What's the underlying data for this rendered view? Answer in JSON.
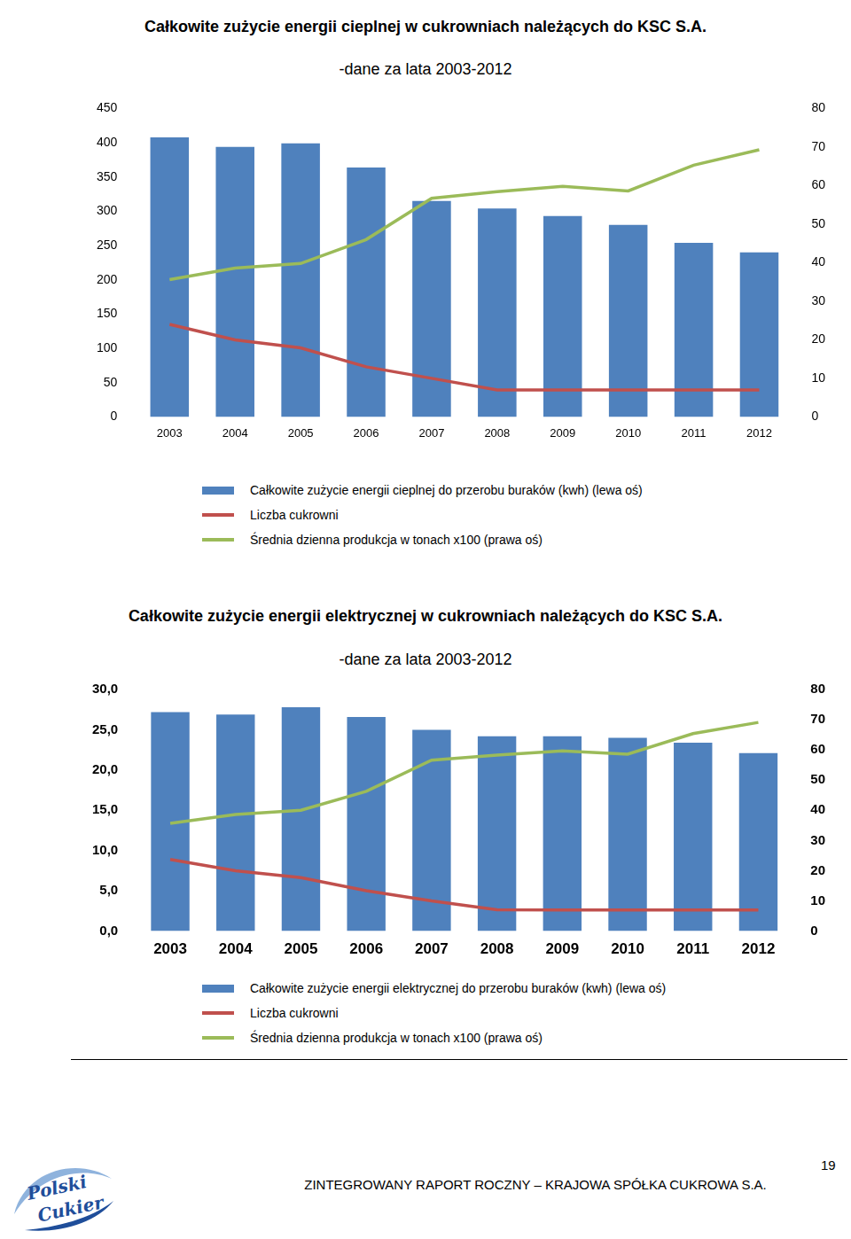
{
  "chart_data": [
    {
      "type": "bar",
      "title": "Całkowite zużycie energii cieplnej w cukrowniach należących do KSC S.A.",
      "subtitle": "-dane za lata 2003-2012",
      "categories": [
        "2003",
        "2004",
        "2005",
        "2006",
        "2007",
        "2008",
        "2009",
        "2010",
        "2011",
        "2012"
      ],
      "series": [
        {
          "name": "Całkowite zużycie energii cieplnej do przerobu buraków (kwh) (lewa oś)",
          "type": "bar",
          "color": "#4f81bd",
          "values": [
            408,
            394,
            399,
            364,
            315,
            304,
            293,
            280,
            254,
            240
          ]
        },
        {
          "name": "Liczba cukrowni",
          "type": "line",
          "axis": "y2",
          "color": "#c0504d",
          "values": [
            24,
            20,
            17.9,
            13,
            10,
            7,
            7,
            7,
            7,
            7
          ]
        },
        {
          "name": "Średnia dzienna produkcja w tonach x100  (prawa oś)",
          "type": "line",
          "axis": "y2",
          "color": "#9bbb59",
          "values": [
            35.6,
            38.6,
            39.8,
            46,
            56.7,
            58.4,
            59.8,
            58.6,
            65.3,
            69.3
          ]
        }
      ],
      "ylim": [
        0,
        450
      ],
      "yticks": [
        0,
        50,
        100,
        150,
        200,
        250,
        300,
        350,
        400,
        450
      ],
      "y2lim": [
        0,
        80
      ],
      "y2ticks": [
        0,
        10,
        20,
        30,
        40,
        50,
        60,
        70,
        80
      ],
      "grid": false
    },
    {
      "type": "bar",
      "title": "Całkowite zużycie energii elektrycznej w cukrowniach należących do KSC S.A.",
      "subtitle": "-dane za lata 2003-2012",
      "categories": [
        "2003",
        "2004",
        "2005",
        "2006",
        "2007",
        "2008",
        "2009",
        "2010",
        "2011",
        "2012"
      ],
      "series": [
        {
          "name": "Całkowite zużycie energii elektrycznej do przerobu buraków (kwh) (lewa oś)",
          "type": "bar",
          "color": "#4f81bd",
          "values": [
            27.2,
            26.9,
            27.8,
            26.6,
            25.0,
            24.2,
            24.2,
            24.0,
            23.4,
            22.1
          ]
        },
        {
          "name": "Liczba cukrowni",
          "type": "line",
          "axis": "y2",
          "color": "#c0504d",
          "values": [
            23.7,
            20,
            17.7,
            13.4,
            10,
            7.1,
            7,
            7,
            7,
            7
          ]
        },
        {
          "name": "Średnia dzienna produkcja w tonach x100  (prawa oś)",
          "type": "line",
          "axis": "y2",
          "color": "#9bbb59",
          "values": [
            35.7,
            38.6,
            40,
            46.3,
            56.6,
            58.3,
            59.7,
            58.6,
            65.4,
            69.1
          ]
        }
      ],
      "ylim": [
        0,
        30
      ],
      "yticks": [
        {
          "value": 0,
          "label": "0,0"
        },
        {
          "value": 5,
          "label": "5,0"
        },
        {
          "value": 10,
          "label": "10,0"
        },
        {
          "value": 15,
          "label": "15,0"
        },
        {
          "value": 20,
          "label": "20,0"
        },
        {
          "value": 25,
          "label": "25,0"
        },
        {
          "value": 30,
          "label": "30,0"
        }
      ],
      "y2lim": [
        0,
        80
      ],
      "y2ticks": [
        0,
        10,
        20,
        30,
        40,
        50,
        60,
        70,
        80
      ],
      "grid": false
    }
  ],
  "footer": {
    "text": "ZINTEGROWANY RAPORT ROCZNY – KRAJOWA SPÓŁKA CUKROWA S.A.",
    "page": 19
  },
  "logo": [
    "Polski",
    "Cukier"
  ]
}
